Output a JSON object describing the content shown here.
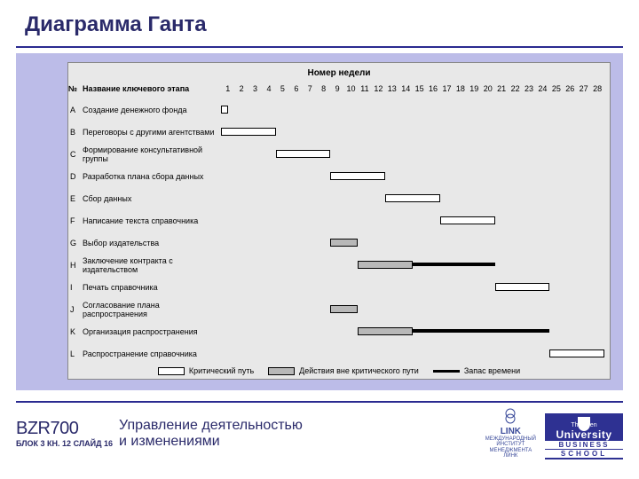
{
  "title": "Диаграмма Ганта",
  "footer": {
    "course_code": "BZR700",
    "course_sub": "БЛОК 3 КН. 12 СЛАЙД 16",
    "subtitle_l1": "Управление деятельностью",
    "subtitle_l2": "и изменениями",
    "link_logo": {
      "l1": "LINK",
      "l2": "МЕЖДУНАРОДНЫЙ",
      "l3": "ИНСТИТУТ",
      "l4": "МЕНЕДЖМЕНТА",
      "l5": "ЛИНК"
    },
    "ou_logo": {
      "t1": "TheOpen",
      "t2": "University",
      "b1": "BUSINESS",
      "b2": "SCHOOL"
    }
  },
  "gantt": {
    "chart_title": "Номер недели",
    "col_num": "№",
    "col_name": "Название ключевого этапа",
    "weeks_count": 28,
    "background_color": "#e8e8e8",
    "panel_color": "#bcbce8",
    "color_critical": "#ffffff",
    "color_noncritical": "#b8b8b8",
    "color_slack": "#000000",
    "tasks": [
      {
        "id": "A",
        "name": "Создание денежного фонда",
        "start": 1,
        "dur": 0.5,
        "type": "critical",
        "slack": 0
      },
      {
        "id": "B",
        "name": "Переговоры с другими агентствами",
        "start": 1,
        "dur": 4,
        "type": "critical",
        "slack": 0
      },
      {
        "id": "C",
        "name": "Формирование консультативной группы",
        "start": 5,
        "dur": 4,
        "type": "critical",
        "slack": 0
      },
      {
        "id": "D",
        "name": "Разработка плана сбора данных",
        "start": 9,
        "dur": 4,
        "type": "critical",
        "slack": 0
      },
      {
        "id": "E",
        "name": "Сбор данных",
        "start": 13,
        "dur": 4,
        "type": "critical",
        "slack": 0
      },
      {
        "id": "F",
        "name": "Написание текста справочника",
        "start": 17,
        "dur": 4,
        "type": "critical",
        "slack": 0
      },
      {
        "id": "G",
        "name": "Выбор издательства",
        "start": 9,
        "dur": 2,
        "type": "noncritical",
        "slack": 0
      },
      {
        "id": "H",
        "name": "Заключение контракта с издательством",
        "start": 11,
        "dur": 4,
        "type": "noncritical",
        "slack": 6
      },
      {
        "id": "I",
        "name": "Печать справочника",
        "start": 21,
        "dur": 4,
        "type": "critical",
        "slack": 0
      },
      {
        "id": "J",
        "name": "Согласование плана распространения",
        "start": 9,
        "dur": 2,
        "type": "noncritical",
        "slack": 0
      },
      {
        "id": "K",
        "name": "Организация распространения",
        "start": 11,
        "dur": 4,
        "type": "noncritical",
        "slack": 10
      },
      {
        "id": "L",
        "name": "Распространение справочника",
        "start": 25,
        "dur": 4,
        "type": "critical",
        "slack": 0
      }
    ],
    "legend": {
      "crit": "Критический путь",
      "noncrit": "Действия вне критического пути",
      "slack": "Запас времени"
    }
  }
}
